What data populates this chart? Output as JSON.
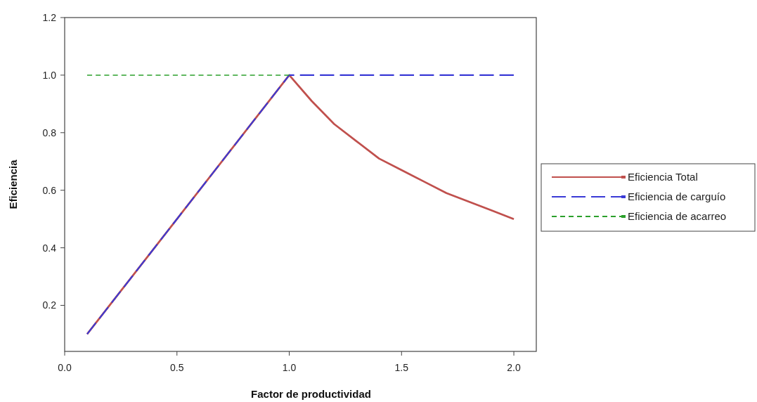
{
  "chart_data": {
    "type": "line",
    "xlabel": "Factor de productividad",
    "ylabel": "Eficiencia",
    "xlim": [
      0,
      2.1
    ],
    "ylim": [
      0.04,
      1.2
    ],
    "xticks": [
      {
        "value": 0,
        "label": "0.0"
      },
      0.5,
      {
        "value": 1,
        "label": "1.0"
      },
      1.5,
      {
        "value": 2,
        "label": "2.0"
      }
    ],
    "yticks": [
      0.2,
      0.4,
      0.6,
      0.8,
      {
        "value": 1,
        "label": "1.0"
      },
      1.2
    ],
    "grid": false,
    "legend": "right",
    "marker": "none",
    "series": [
      {
        "name": "Eficiencia Total",
        "color": "#c0504d",
        "line_style": "solid",
        "x": [
          0.1,
          1.0,
          1.1,
          1.2,
          1.3,
          1.4,
          1.5,
          1.6,
          1.7,
          1.8,
          1.9,
          2.0
        ],
        "values": [
          0.1,
          1.0,
          0.91,
          0.83,
          0.77,
          0.71,
          0.67,
          0.63,
          0.59,
          0.56,
          0.53,
          0.5
        ]
      },
      {
        "name": "Eficiencia de carguío",
        "color": "#3a3ad6",
        "line_style": "longdash",
        "x": [
          0.1,
          1.0,
          2.0
        ],
        "values": [
          0.1,
          1.0,
          1.0
        ]
      },
      {
        "name": "Eficiencia de acarreo",
        "color": "#2ca02c",
        "line_style": "dashed",
        "x": [
          0.1,
          1.0
        ],
        "values": [
          1.0,
          1.0
        ]
      }
    ]
  }
}
